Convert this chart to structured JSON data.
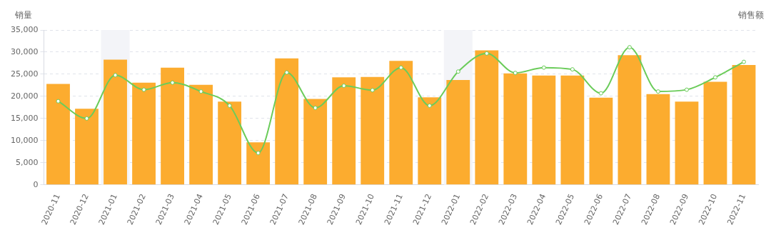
{
  "chart_data": {
    "type": "bar",
    "ylabel": "销量",
    "y2label": "销售额",
    "categories": [
      "2020-11",
      "2020-12",
      "2021-01",
      "2021-02",
      "2021-03",
      "2021-04",
      "2021-05",
      "2021-06",
      "2021-07",
      "2021-08",
      "2021-09",
      "2021-10",
      "2021-11",
      "2021-12",
      "2022-01",
      "2022-02",
      "2022-03",
      "2022-04",
      "2022-05",
      "2022-06",
      "2022-07",
      "2022-08",
      "2022-09",
      "2022-10",
      "2022-11"
    ],
    "series": [
      {
        "color": "#fcac2f",
        "values": [
          22800,
          17200,
          28300,
          23100,
          26500,
          22600,
          18800,
          9600,
          28600,
          19400,
          24300,
          24400,
          28000,
          19800,
          23700,
          30400,
          25200,
          24700,
          24700,
          19700,
          29300,
          20500,
          18800,
          23300,
          27100
        ]
      },
      {
        "type": "line",
        "color": "#6bcc5a",
        "marker": "circle",
        "values": [
          18900,
          15000,
          24800,
          21500,
          23100,
          21100,
          17900,
          7200,
          25400,
          17400,
          22400,
          21400,
          26500,
          17900,
          25600,
          29700,
          25300,
          26500,
          26100,
          20700,
          31100,
          21100,
          21500,
          24300,
          27800
        ]
      }
    ],
    "ylim": [
      0,
      35000
    ],
    "yticks": [
      0,
      {
        "value": 5000,
        "label": "5,000"
      },
      {
        "value": 10000,
        "label": "10,000"
      },
      {
        "value": 15000,
        "label": "15,000"
      },
      {
        "value": 20000,
        "label": "20,000"
      },
      {
        "value": 25000,
        "label": "25,000"
      },
      {
        "value": 30000,
        "label": "30,000"
      },
      {
        "value": 35000,
        "label": "35,000"
      }
    ],
    "grid": "y",
    "bands": [
      {
        "axis": "x",
        "from": "2021-01",
        "to": "2021-01",
        "color": "#f3f4f8"
      },
      {
        "axis": "x",
        "from": "2022-01",
        "to": "2022-01",
        "color": "#f3f4f8"
      }
    ]
  }
}
